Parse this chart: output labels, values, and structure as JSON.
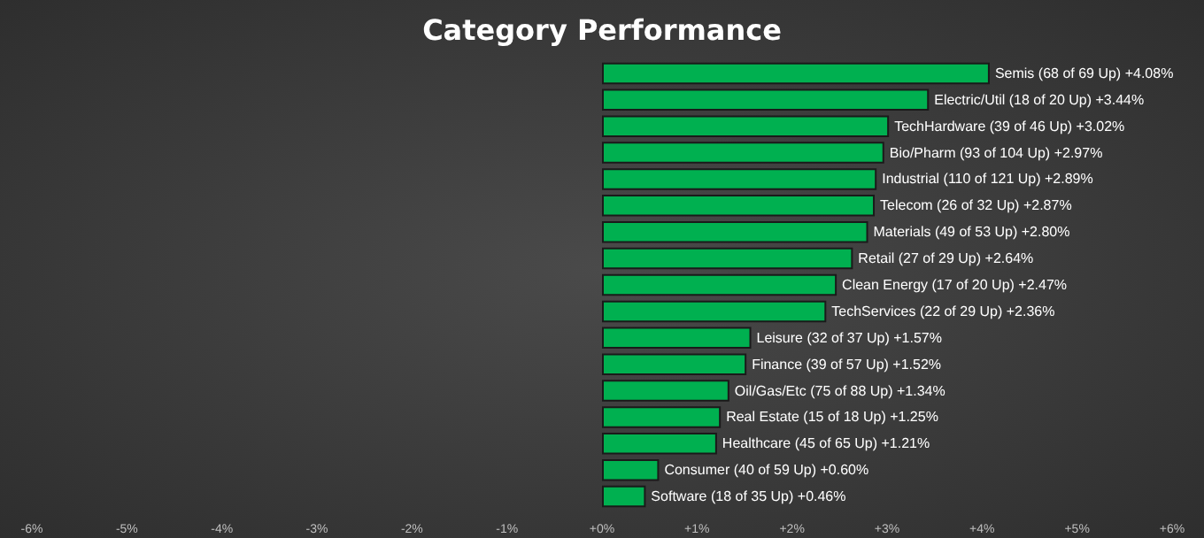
{
  "chart_data": {
    "type": "bar",
    "orientation": "horizontal",
    "title": "Category Performance",
    "categories": [
      "Semis (68 of 69 Up)",
      "Electric/Util (18 of 20 Up)",
      "TechHardware (39 of 46 Up)",
      "Bio/Pharm (93 of 104 Up)",
      "Industrial (110 of 121 Up)",
      "Telecom (26 of 32 Up)",
      "Materials (49 of 53 Up)",
      "Retail (27 of 29 Up)",
      "Clean Energy (17 of 20 Up)",
      "TechServices (22 of 29 Up)",
      "Leisure (32 of 37 Up)",
      "Finance (39 of 57 Up)",
      "Oil/Gas/Etc (75 of 88 Up)",
      "Real Estate (15 of 18 Up)",
      "Healthcare (45 of 65 Up)",
      "Consumer (40 of 59 Up)",
      "Software (18 of 35 Up)"
    ],
    "values": [
      4.08,
      3.44,
      3.02,
      2.97,
      2.89,
      2.87,
      2.8,
      2.64,
      2.47,
      2.36,
      1.57,
      1.52,
      1.34,
      1.25,
      1.21,
      0.6,
      0.46
    ],
    "value_labels": [
      "+4.08%",
      "+3.44%",
      "+3.02%",
      "+2.97%",
      "+2.89%",
      "+2.87%",
      "+2.80%",
      "+2.64%",
      "+2.47%",
      "+2.36%",
      "+1.57%",
      "+1.52%",
      "+1.34%",
      "+1.25%",
      "+1.21%",
      "+0.60%",
      "+0.46%"
    ],
    "color": "#00b050",
    "xlim": [
      -6,
      6
    ],
    "xticks": [
      {
        "value": -6,
        "label": "-6%"
      },
      {
        "value": -5,
        "label": "-5%"
      },
      {
        "value": -4,
        "label": "-4%"
      },
      {
        "value": -3,
        "label": "-3%"
      },
      {
        "value": -2,
        "label": "-2%"
      },
      {
        "value": -1,
        "label": "-1%"
      },
      {
        "value": 0,
        "label": "+0%"
      },
      {
        "value": 1,
        "label": "+1%"
      },
      {
        "value": 2,
        "label": "+2%"
      },
      {
        "value": 3,
        "label": "+3%"
      },
      {
        "value": 4,
        "label": "+4%"
      },
      {
        "value": 5,
        "label": "+5%"
      },
      {
        "value": 6,
        "label": "+6%"
      }
    ],
    "tick_labels": "x"
  }
}
